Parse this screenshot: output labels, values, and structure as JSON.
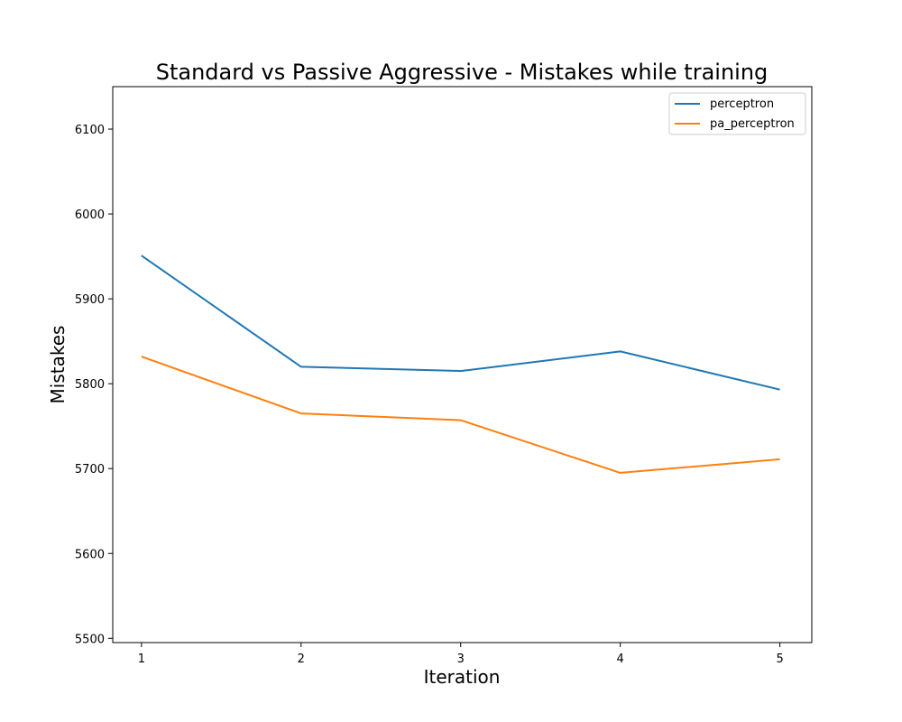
{
  "chart_data": {
    "type": "line",
    "title": "Standard vs Passive Aggressive - Mistakes while training",
    "xlabel": "Iteration",
    "ylabel": "Mistakes",
    "x": [
      1,
      2,
      3,
      4,
      5
    ],
    "x_ticks": [
      "1",
      "2",
      "3",
      "4",
      "5"
    ],
    "y_ticks": [
      5500,
      5600,
      5700,
      5800,
      5900,
      6000,
      6100
    ],
    "xlim": [
      0.82,
      5.2
    ],
    "ylim": [
      5495,
      6150
    ],
    "grid": false,
    "legend_position": "top-right",
    "series": [
      {
        "name": "perceptron",
        "color": "#1f77b4",
        "values": [
          5951,
          5820,
          5815,
          5838,
          5793
        ]
      },
      {
        "name": "pa_perceptron",
        "color": "#ff7f0e",
        "values": [
          5832,
          5765,
          5757,
          5695,
          5711
        ]
      }
    ]
  }
}
